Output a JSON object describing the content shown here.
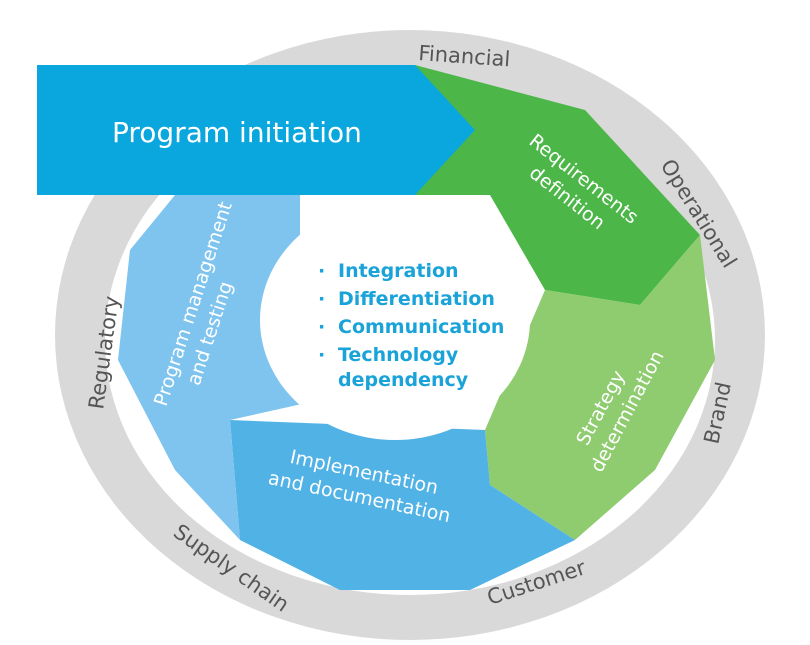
{
  "banner": {
    "label": "Program initiation"
  },
  "outer_ring": {
    "labels": [
      "Financial",
      "Operational",
      "Brand",
      "Customer",
      "Supply chain",
      "Regulatory"
    ]
  },
  "segments": {
    "requirements": [
      "Requirements",
      "definition"
    ],
    "strategy": [
      "Strategy",
      "determination"
    ],
    "implementation": [
      "Implementation",
      "and documentation"
    ],
    "program_mgmt": [
      "Program management",
      "and testing"
    ]
  },
  "core": {
    "items": [
      "Integration",
      "Differentiation",
      "Communication",
      "Technology",
      "dependency"
    ]
  },
  "colors": {
    "ring": "#d9d9d9",
    "banner": "#0aa6de",
    "requirements": "#4cb748",
    "strategy": "#8fcb6f",
    "implementation": "#51b2e6",
    "program_mgmt": "#7ec4ee",
    "core_text": "#1aa3d9"
  }
}
